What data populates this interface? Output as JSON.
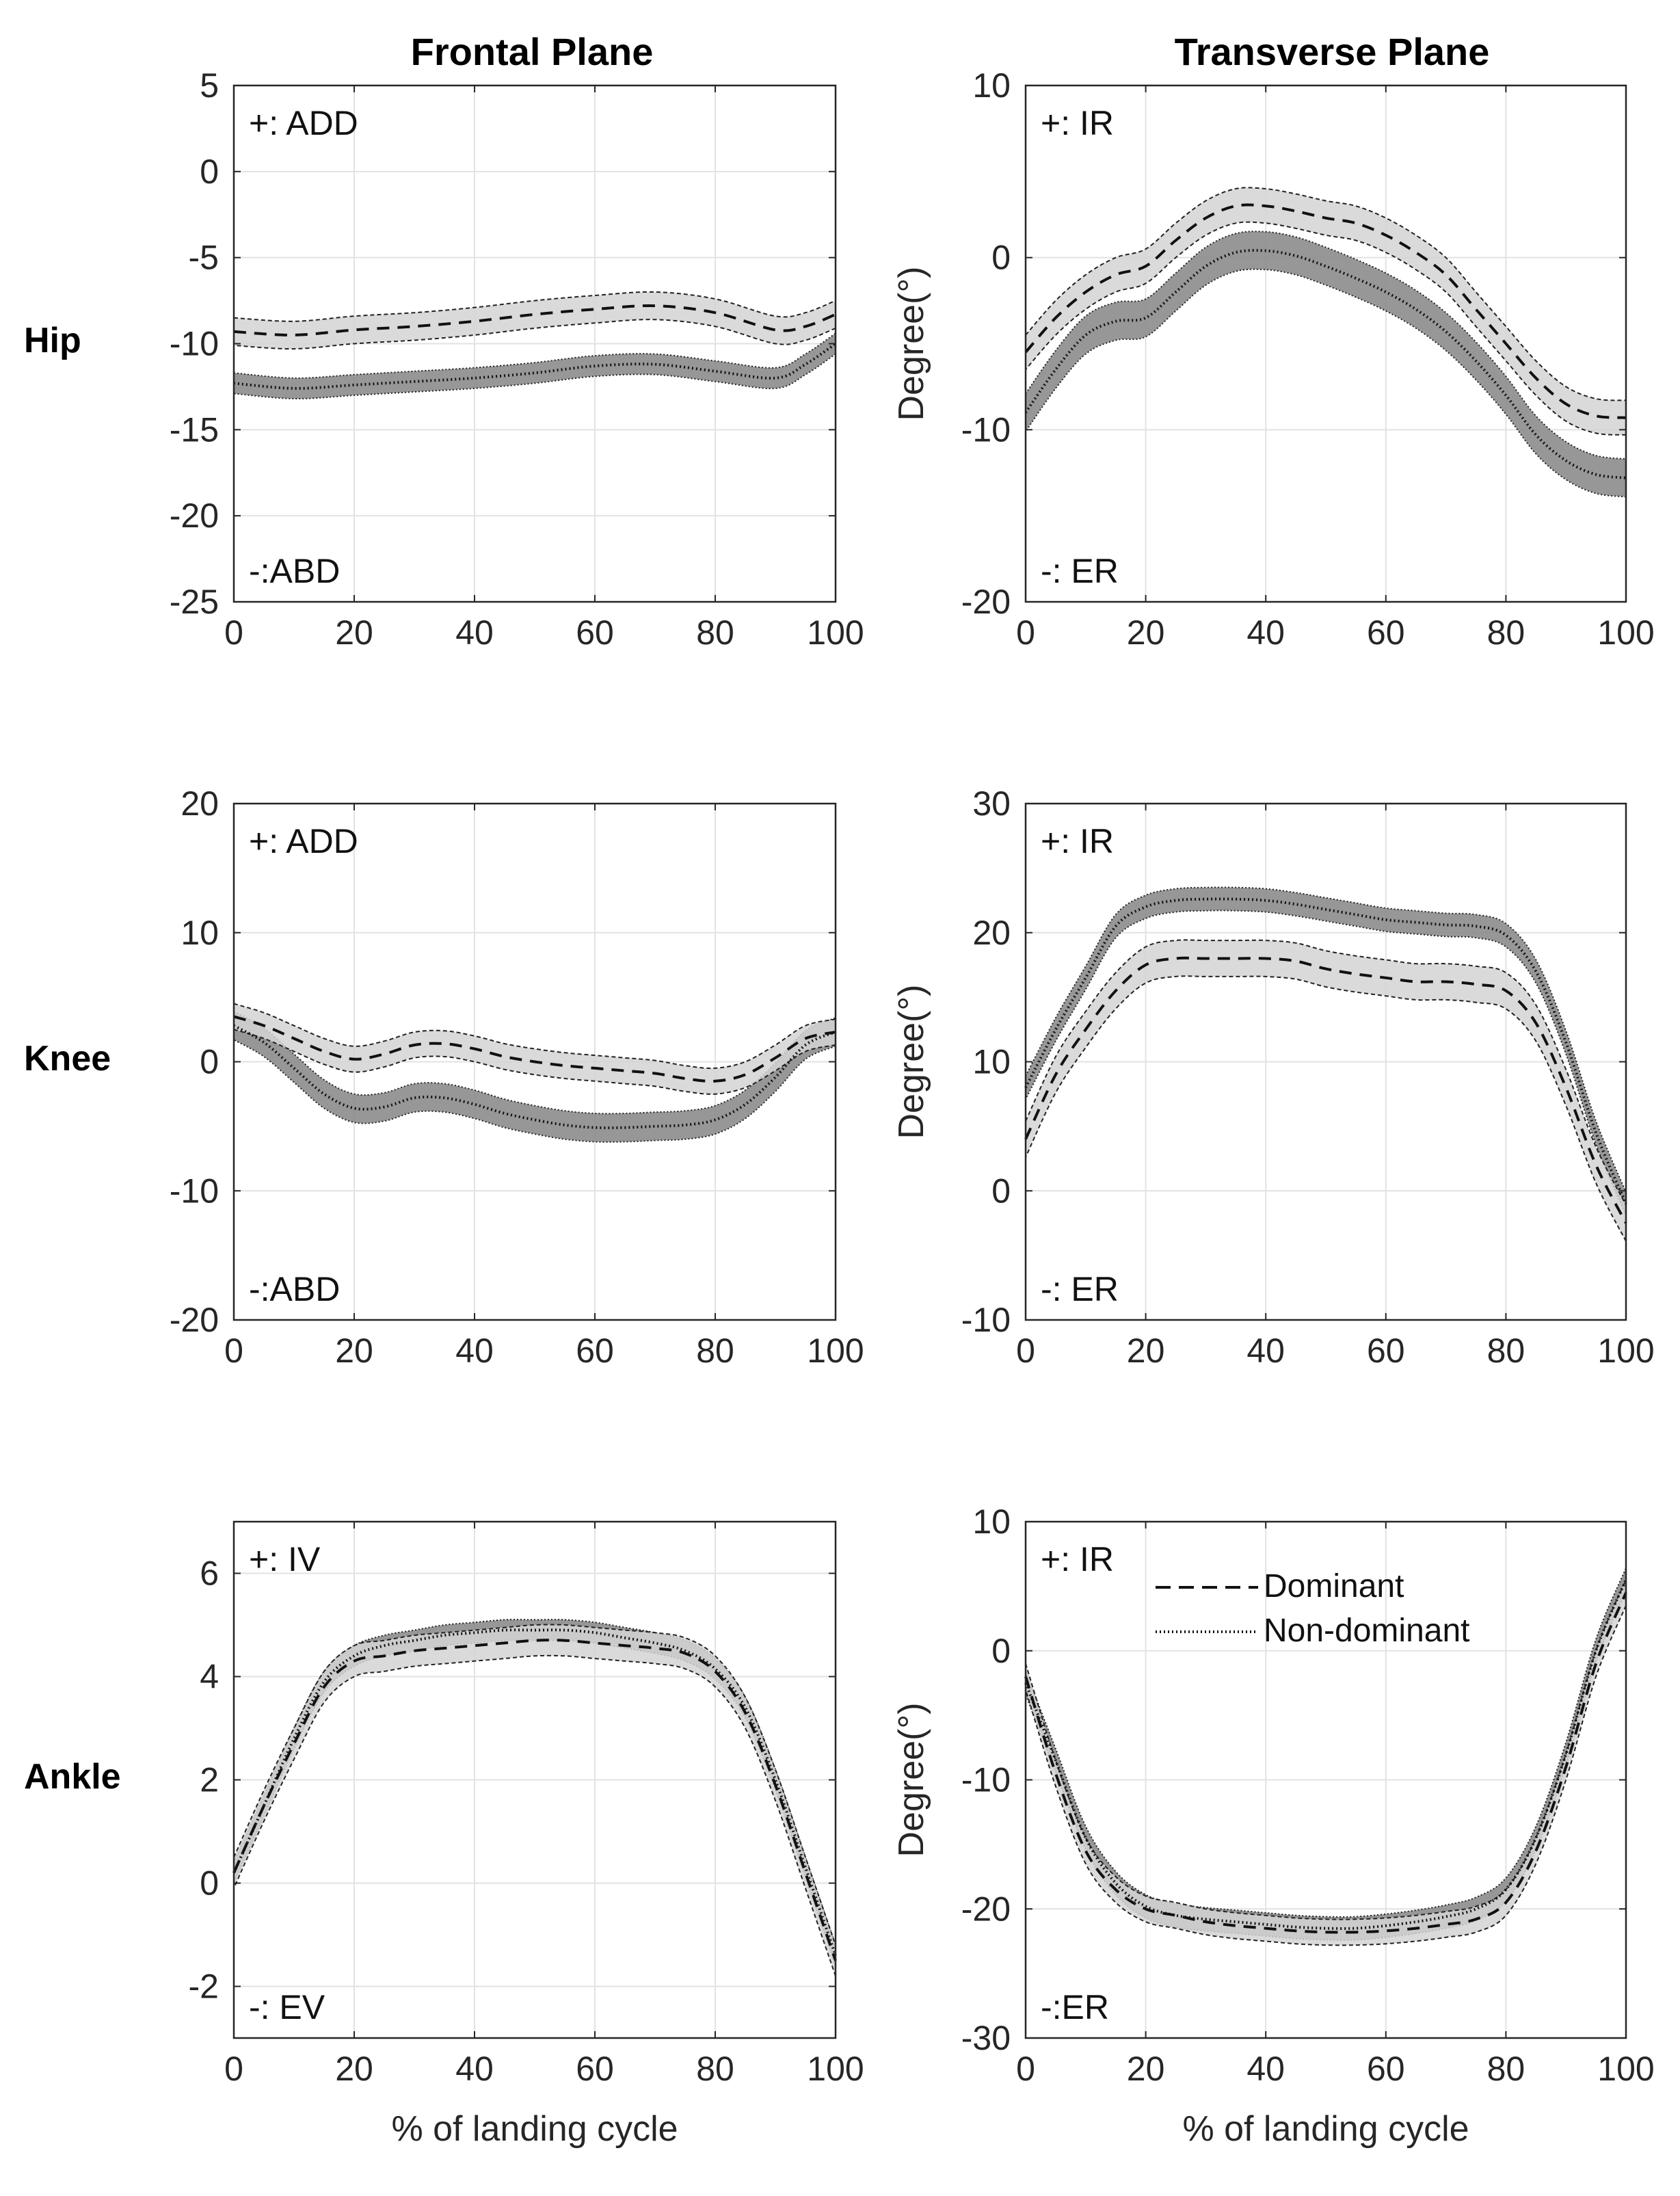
{
  "figure": {
    "col_titles": [
      "Frontal Plane",
      "Transverse Plane"
    ],
    "row_labels": [
      "Hip",
      "Knee",
      "Ankle"
    ],
    "xlabel": "% of landing cycle",
    "ylabel_right": "Degree(°)",
    "legend": {
      "dominant": "Dominant",
      "nondominant": "Non-dominant"
    }
  },
  "chart_data": [
    {
      "type": "line",
      "id": "hip-frontal",
      "row": 0,
      "col": 0,
      "xlim": [
        0,
        100
      ],
      "ylim": [
        -25,
        5
      ],
      "yticks": [
        5,
        0,
        -5,
        -10,
        -15,
        -20,
        -25
      ],
      "xticks": [
        0,
        20,
        40,
        60,
        80,
        100
      ],
      "ylabel": "",
      "xlabel": "",
      "annot_top": "+: ADD",
      "annot_bottom": "-:ABD",
      "x": [
        0,
        10,
        20,
        30,
        40,
        50,
        60,
        70,
        80,
        90,
        95,
        100
      ],
      "series": [
        {
          "name": "Dominant",
          "style": "dashed",
          "values": [
            -9.3,
            -9.5,
            -9.2,
            -9.0,
            -8.7,
            -8.3,
            -8.0,
            -7.8,
            -8.2,
            -9.2,
            -9.0,
            -8.3
          ],
          "sd": 0.8
        },
        {
          "name": "Non-dominant",
          "style": "dotted",
          "values": [
            -12.3,
            -12.6,
            -12.4,
            -12.2,
            -12.0,
            -11.7,
            -11.3,
            -11.2,
            -11.6,
            -12.0,
            -11.2,
            -10.0
          ],
          "sd": 0.6
        }
      ]
    },
    {
      "type": "line",
      "id": "hip-transverse",
      "row": 0,
      "col": 1,
      "xlim": [
        0,
        100
      ],
      "ylim": [
        -20,
        10
      ],
      "yticks": [
        10,
        0,
        -10,
        -20
      ],
      "xticks": [
        0,
        20,
        40,
        60,
        80,
        100
      ],
      "ylabel": "Degree(°)",
      "xlabel": "",
      "annot_top": "+: IR",
      "annot_bottom": "-: ER",
      "x": [
        0,
        5,
        10,
        15,
        20,
        25,
        30,
        35,
        40,
        45,
        50,
        55,
        60,
        65,
        70,
        75,
        80,
        85,
        90,
        95,
        100
      ],
      "series": [
        {
          "name": "Dominant",
          "style": "dashed",
          "values": [
            -5.5,
            -3.5,
            -2.0,
            -1.0,
            -0.5,
            1.0,
            2.3,
            3.0,
            3.0,
            2.7,
            2.3,
            2.0,
            1.3,
            0.3,
            -1.0,
            -3.0,
            -5.0,
            -7.0,
            -8.5,
            -9.2,
            -9.3
          ],
          "sd": 1.0
        },
        {
          "name": "Non-dominant",
          "style": "dotted",
          "values": [
            -9.0,
            -6.5,
            -4.5,
            -3.7,
            -3.5,
            -2.0,
            -0.5,
            0.3,
            0.4,
            0.1,
            -0.5,
            -1.2,
            -2.0,
            -3.0,
            -4.3,
            -6.0,
            -8.0,
            -10.3,
            -11.8,
            -12.6,
            -12.8
          ],
          "sd": 1.1
        }
      ]
    },
    {
      "type": "line",
      "id": "knee-frontal",
      "row": 1,
      "col": 0,
      "xlim": [
        0,
        100
      ],
      "ylim": [
        -20,
        20
      ],
      "yticks": [
        20,
        10,
        0,
        -10,
        -20
      ],
      "xticks": [
        0,
        20,
        40,
        60,
        80,
        100
      ],
      "ylabel": "",
      "xlabel": "",
      "annot_top": "+: ADD",
      "annot_bottom": "-:ABD",
      "x": [
        0,
        5,
        10,
        15,
        20,
        25,
        30,
        35,
        40,
        45,
        50,
        55,
        60,
        65,
        70,
        75,
        80,
        85,
        90,
        95,
        100
      ],
      "series": [
        {
          "name": "Dominant",
          "style": "dashed",
          "values": [
            3.5,
            2.8,
            1.8,
            0.8,
            0.2,
            0.6,
            1.3,
            1.4,
            1.0,
            0.4,
            0.0,
            -0.3,
            -0.5,
            -0.7,
            -0.9,
            -1.3,
            -1.5,
            -1.0,
            0.3,
            1.8,
            2.3
          ],
          "sd": 1.0
        },
        {
          "name": "Non-dominant",
          "style": "dotted",
          "values": [
            2.8,
            1.5,
            -0.5,
            -2.5,
            -3.6,
            -3.5,
            -2.8,
            -2.8,
            -3.3,
            -4.0,
            -4.5,
            -4.9,
            -5.1,
            -5.1,
            -5.0,
            -4.9,
            -4.5,
            -3.3,
            -1.2,
            1.3,
            2.3
          ],
          "sd": 1.1
        }
      ]
    },
    {
      "type": "line",
      "id": "knee-transverse",
      "row": 1,
      "col": 1,
      "xlim": [
        0,
        100
      ],
      "ylim": [
        -10,
        30
      ],
      "yticks": [
        30,
        20,
        10,
        0,
        -10
      ],
      "xticks": [
        0,
        20,
        40,
        60,
        80,
        100
      ],
      "ylabel": "Degree(°)",
      "xlabel": "",
      "annot_top": "+: IR",
      "annot_bottom": "-: ER",
      "x": [
        0,
        5,
        10,
        15,
        20,
        25,
        30,
        35,
        40,
        45,
        50,
        55,
        60,
        65,
        70,
        75,
        80,
        85,
        90,
        95,
        100
      ],
      "series": [
        {
          "name": "Dominant",
          "style": "dashed",
          "values": [
            4.0,
            9.0,
            12.5,
            15.5,
            17.5,
            18.0,
            18.0,
            18.0,
            18.0,
            17.8,
            17.2,
            16.8,
            16.5,
            16.2,
            16.2,
            16.0,
            15.5,
            13.0,
            8.0,
            2.0,
            -2.5
          ],
          "sd": 1.4
        },
        {
          "name": "Non-dominant",
          "style": "dotted",
          "values": [
            8.0,
            12.5,
            16.5,
            20.5,
            22.0,
            22.5,
            22.6,
            22.6,
            22.5,
            22.2,
            21.8,
            21.4,
            21.0,
            20.8,
            20.6,
            20.5,
            19.8,
            17.0,
            11.5,
            4.5,
            -1.0
          ],
          "sd": 0.9
        }
      ]
    },
    {
      "type": "line",
      "id": "ankle-frontal",
      "row": 2,
      "col": 0,
      "xlim": [
        0,
        100
      ],
      "ylim": [
        -3,
        7
      ],
      "yticks": [
        6,
        4,
        2,
        0,
        -2
      ],
      "xticks": [
        0,
        20,
        40,
        60,
        80,
        100
      ],
      "ylabel": "",
      "xlabel": "% of landing cycle",
      "annot_top": "+: IV",
      "annot_bottom": "-: EV",
      "x": [
        0,
        5,
        10,
        15,
        20,
        25,
        30,
        35,
        40,
        45,
        50,
        55,
        60,
        65,
        70,
        75,
        80,
        85,
        90,
        95,
        100
      ],
      "series": [
        {
          "name": "Dominant",
          "style": "dashed",
          "values": [
            0.2,
            1.5,
            2.7,
            3.8,
            4.3,
            4.4,
            4.5,
            4.55,
            4.6,
            4.65,
            4.7,
            4.7,
            4.65,
            4.6,
            4.55,
            4.45,
            4.1,
            3.3,
            1.9,
            0.2,
            -1.5
          ],
          "sd": 0.3
        },
        {
          "name": "Non-dominant",
          "style": "dotted",
          "values": [
            0.2,
            1.5,
            2.8,
            3.9,
            4.4,
            4.6,
            4.7,
            4.8,
            4.85,
            4.9,
            4.9,
            4.9,
            4.85,
            4.75,
            4.65,
            4.5,
            4.15,
            3.4,
            2.0,
            0.3,
            -1.4
          ],
          "sd": 0.2
        }
      ]
    },
    {
      "type": "line",
      "id": "ankle-transverse",
      "row": 2,
      "col": 1,
      "xlim": [
        0,
        100
      ],
      "ylim": [
        -30,
        10
      ],
      "yticks": [
        10,
        0,
        -10,
        -20,
        -30
      ],
      "xticks": [
        0,
        20,
        40,
        60,
        80,
        100
      ],
      "ylabel": "Degree(°)",
      "xlabel": "% of landing cycle",
      "annot_top": "+: IR",
      "annot_bottom": "-:ER",
      "legend": true,
      "x": [
        0,
        5,
        10,
        15,
        20,
        25,
        30,
        35,
        40,
        45,
        50,
        55,
        60,
        65,
        70,
        75,
        80,
        85,
        90,
        95,
        100
      ],
      "series": [
        {
          "name": "Dominant",
          "style": "dashed",
          "values": [
            -2.0,
            -9.5,
            -15.5,
            -18.5,
            -20.0,
            -20.5,
            -21.0,
            -21.3,
            -21.5,
            -21.7,
            -21.8,
            -21.8,
            -21.7,
            -21.5,
            -21.2,
            -20.8,
            -19.5,
            -15.5,
            -9.0,
            -1.0,
            4.5
          ],
          "sd": 1.0
        },
        {
          "name": "Non-dominant",
          "style": "dotted",
          "values": [
            -2.5,
            -8.5,
            -14.5,
            -18.0,
            -19.8,
            -20.5,
            -20.8,
            -21.0,
            -21.2,
            -21.4,
            -21.5,
            -21.5,
            -21.3,
            -21.0,
            -20.6,
            -20.0,
            -18.5,
            -14.5,
            -8.0,
            0.0,
            5.5
          ],
          "sd": 0.9
        }
      ]
    }
  ]
}
